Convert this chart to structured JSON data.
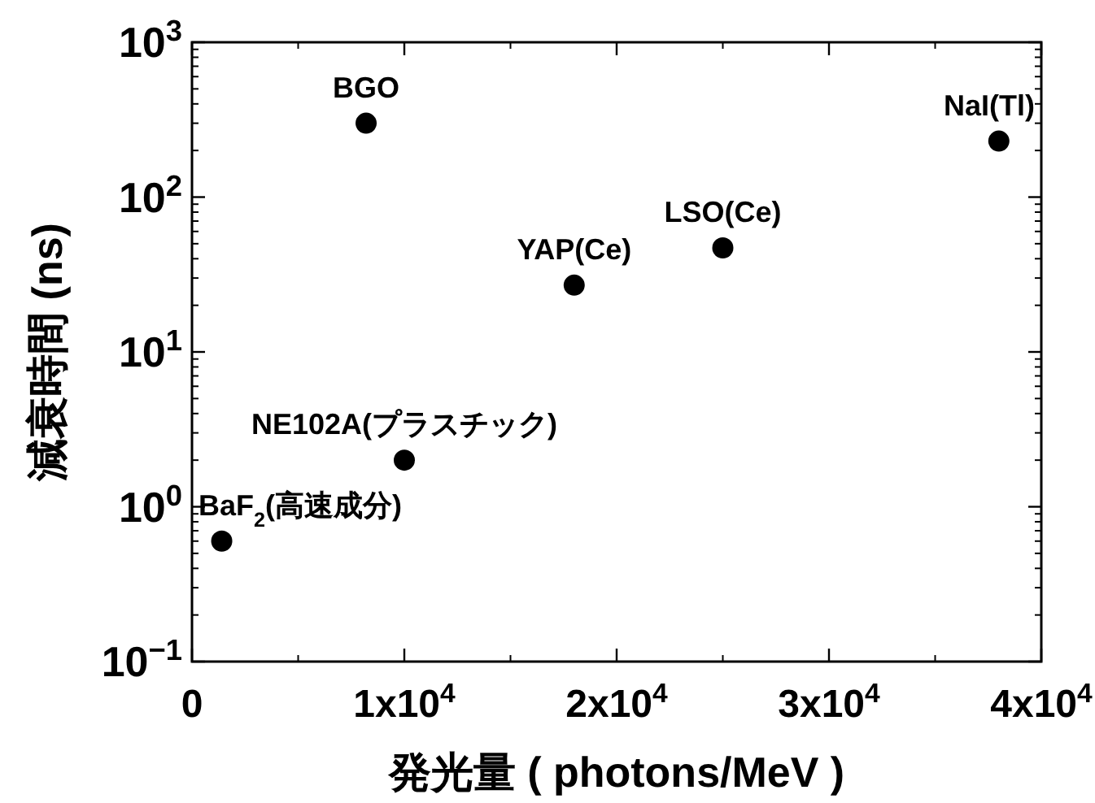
{
  "chart_data": {
    "type": "scatter",
    "xlabel": "発光量 ( photons/MeV )",
    "ylabel": "減衰時間 (ns)",
    "series": [
      {
        "color": "#000000",
        "x": [
          1400,
          10000,
          8200,
          18000,
          25000,
          38000
        ],
        "values": [
          0.6,
          2.0,
          300,
          27,
          47,
          230
        ]
      }
    ],
    "marker": "circle",
    "log": "y",
    "grid": false,
    "xlim": [
      0,
      40000
    ],
    "ylim": [
      0.1,
      1000
    ],
    "xticks": [
      0,
      {
        "value": 10000,
        "label": "1x10$^{4}$"
      },
      {
        "value": 20000,
        "label": "2x10$^{4}$"
      },
      {
        "value": 30000,
        "label": "3x10$^{4}$"
      },
      {
        "value": 40000,
        "label": "4x10$^{4}$"
      }
    ],
    "yticks": [
      {
        "value": 0.1,
        "label": "10$^{−1}$"
      },
      {
        "value": 1,
        "label": "10$^{0}$"
      },
      {
        "value": 10,
        "label": "10$^{1}$"
      },
      {
        "value": 100,
        "label": "10$^{2}$"
      },
      {
        "value": 1000,
        "label": "10$^{3}$"
      }
    ],
    "annotations": [
      {
        "text": "BaF$_{2}$(高速成分)",
        "x": 1400,
        "y": 0.6
      },
      {
        "text": "NE102A(プラスチック)",
        "x": 10000,
        "y": 2.0
      },
      {
        "text": "BGO",
        "x": 8200,
        "y": 300
      },
      {
        "text": "YAP(Ce)",
        "x": 18000,
        "y": 27
      },
      {
        "text": "LSO(Ce)",
        "x": 25000,
        "y": 47
      },
      {
        "text": "NaI(Tl)",
        "x": 38000,
        "y": 230
      }
    ]
  }
}
